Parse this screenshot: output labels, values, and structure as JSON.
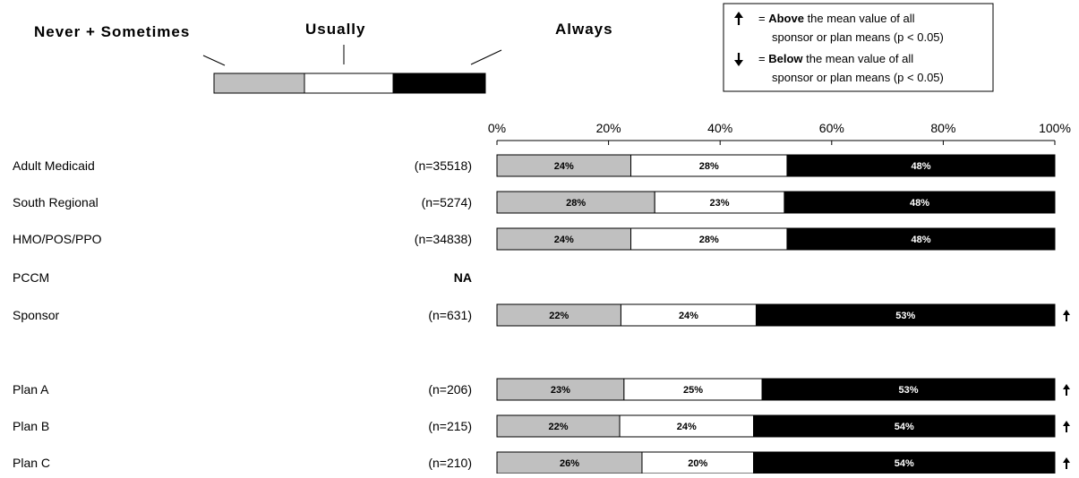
{
  "legend": {
    "categories": [
      "Never + Sometimes",
      "Usually",
      "Always"
    ],
    "colors": [
      "#c0c0c0",
      "#ffffff",
      "#000000"
    ]
  },
  "significance_box": {
    "above": {
      "symbol": "above-arrow-icon",
      "prefix": "= ",
      "bold": "Above",
      "rest": " the mean value of all",
      "line2": "sponsor or plan means (p < 0.05)"
    },
    "below": {
      "symbol": "below-arrow-icon",
      "prefix": "= ",
      "bold": "Below",
      "rest": " the mean value of all",
      "line2": "sponsor or plan means (p < 0.05)"
    }
  },
  "chart_data": {
    "type": "bar",
    "orientation": "horizontal",
    "stacked": true,
    "xlim": [
      0,
      100
    ],
    "x_ticks": [
      "0%",
      "20%",
      "40%",
      "60%",
      "80%",
      "100%"
    ],
    "legend_placement": "top",
    "series_names": [
      "Never + Sometimes",
      "Usually",
      "Always"
    ],
    "rows": [
      {
        "label": "Adult Medicaid",
        "n": "(n=35518)",
        "values": [
          24,
          28,
          48
        ],
        "labels": [
          "24%",
          "28%",
          "48%"
        ],
        "sig": ""
      },
      {
        "label": "South Regional",
        "n": "(n=5274)",
        "values": [
          28,
          23,
          48
        ],
        "labels": [
          "28%",
          "23%",
          "48%"
        ],
        "sig": ""
      },
      {
        "label": "HMO/POS/PPO",
        "n": "(n=34838)",
        "values": [
          24,
          28,
          48
        ],
        "labels": [
          "24%",
          "28%",
          "48%"
        ],
        "sig": ""
      },
      {
        "label": "PCCM",
        "n": "NA",
        "values": [],
        "labels": [],
        "sig": ""
      },
      {
        "label": "Sponsor",
        "n": "(n=631)",
        "values": [
          22,
          24,
          53
        ],
        "labels": [
          "22%",
          "24%",
          "53%"
        ],
        "sig": "above"
      },
      {
        "label": "Plan A",
        "n": "(n=206)",
        "values": [
          23,
          25,
          53
        ],
        "labels": [
          "23%",
          "25%",
          "53%"
        ],
        "sig": "above"
      },
      {
        "label": "Plan B",
        "n": "(n=215)",
        "values": [
          22,
          24,
          54
        ],
        "labels": [
          "22%",
          "24%",
          "54%"
        ],
        "sig": "above"
      },
      {
        "label": "Plan C",
        "n": "(n=210)",
        "values": [
          26,
          20,
          54
        ],
        "labels": [
          "26%",
          "20%",
          "54%"
        ],
        "sig": "above"
      }
    ]
  }
}
